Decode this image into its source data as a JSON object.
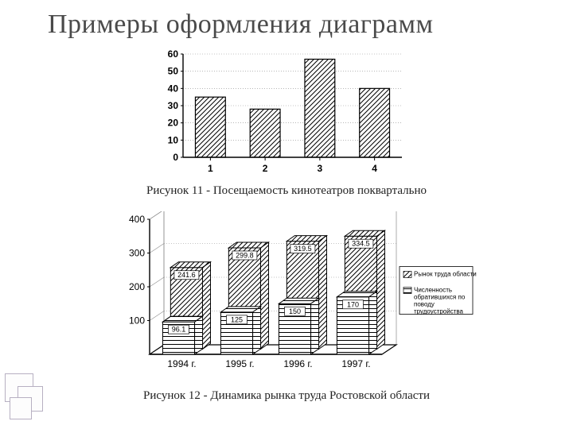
{
  "title": "Примеры оформления диаграмм",
  "chart1": {
    "type": "bar",
    "caption": "Рисунок 11 - Посещаемость кинотеатров поквартально",
    "categories": [
      "1",
      "2",
      "3",
      "4"
    ],
    "values": [
      35,
      28,
      57,
      40
    ],
    "ylim": [
      0,
      60
    ],
    "yticks": [
      0,
      10,
      20,
      30,
      40,
      50,
      60
    ],
    "bar_width": 0.55,
    "bar_fill": "#ffffff",
    "bar_stroke": "#000000",
    "pattern": "diagonal-hatch",
    "axis_color": "#000000",
    "grid_color": "#8a8a8a",
    "background_color": "#ffffff",
    "tick_font_bold": true,
    "tick_font_size": 12
  },
  "chart2": {
    "type": "bar-3d-grouped",
    "caption": "Рисунок 12 - Динамика рынка труда Ростовской области",
    "categories": [
      "1994 г.",
      "1995 г.",
      "1996 г.",
      "1997 г."
    ],
    "series": [
      {
        "name": "Рынок труда области",
        "pattern": "diagonal-hatch",
        "label_color": "#000"
      },
      {
        "name": "Численность обратившихся по поводу трудоустройства",
        "pattern": "horizontal-hatch",
        "label_color": "#000"
      }
    ],
    "values_back": [
      241.6,
      299.8,
      319.5,
      334.5
    ],
    "values_front": [
      96.1,
      125,
      150,
      170
    ],
    "ylim": [
      0,
      400
    ],
    "yticks": [
      100,
      200,
      300,
      400
    ],
    "axis_color": "#000000",
    "grid_color": "#8a8a8a",
    "background_color": "#ffffff",
    "bar_stroke": "#000000",
    "tick_font_size": 11
  },
  "colors": {
    "title_color": "#4a4a4a",
    "deco_border": "#b7b0c2"
  }
}
